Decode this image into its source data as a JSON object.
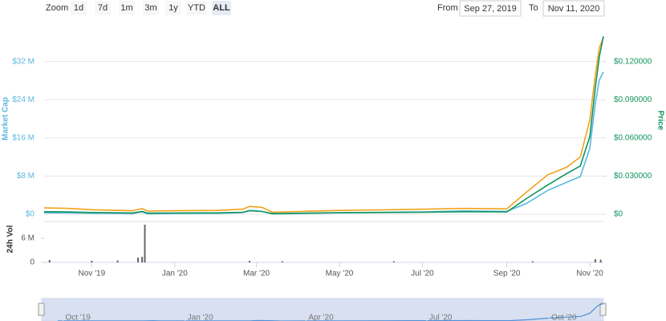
{
  "controls": {
    "zoom_label": "Zoom",
    "zoom_buttons": [
      "1d",
      "7d",
      "1m",
      "3m",
      "1y",
      "YTD",
      "ALL"
    ],
    "selected_button": "ALL",
    "from_label": "From",
    "from": "Sep 27, 2019",
    "to_label": "To",
    "to": "Nov 11, 2020"
  },
  "chart_data": [
    {
      "type": "line",
      "ylabel": "Market Cap",
      "y2label": "Price",
      "grid": true,
      "x": [
        "2019-09-27",
        "2019-10-15",
        "2019-11-01",
        "2019-11-15",
        "2019-12-01",
        "2019-12-08",
        "2019-12-12",
        "2020-01-01",
        "2020-02-01",
        "2020-02-20",
        "2020-02-25",
        "2020-03-05",
        "2020-03-13",
        "2020-04-01",
        "2020-05-01",
        "2020-06-01",
        "2020-07-01",
        "2020-08-01",
        "2020-09-01",
        "2020-09-15",
        "2020-10-01",
        "2020-10-15",
        "2020-10-25",
        "2020-11-01",
        "2020-11-05",
        "2020-11-08",
        "2020-11-11"
      ],
      "xlim": [
        "2019-09-27",
        "2020-11-11"
      ],
      "xticks": [
        {
          "value": "2019-11-01",
          "label": "Nov '19"
        },
        {
          "value": "2020-01-01",
          "label": "Jan '20"
        },
        {
          "value": "2020-03-01",
          "label": "Mar '20"
        },
        {
          "value": "2020-05-01",
          "label": "May '20"
        },
        {
          "value": "2020-07-01",
          "label": "Jul '20"
        },
        {
          "value": "2020-09-01",
          "label": "Sep '20"
        },
        {
          "value": "2020-11-01",
          "label": "Nov '20"
        }
      ],
      "ylim": [
        0,
        39000000
      ],
      "yticks": [
        {
          "value": 0,
          "label": "$0"
        },
        {
          "value": 8000000,
          "label": "$8 M"
        },
        {
          "value": 16000000,
          "label": "$16 M"
        },
        {
          "value": 24000000,
          "label": "$24 M"
        },
        {
          "value": 32000000,
          "label": "$32 M"
        }
      ],
      "y2lim": [
        0,
        0.1465
      ],
      "y2ticks": [
        {
          "value": 0,
          "label": "$0"
        },
        {
          "value": 0.03,
          "label": "$0.030000"
        },
        {
          "value": 0.06,
          "label": "$0.060000"
        },
        {
          "value": 0.09,
          "label": "$0.090000"
        },
        {
          "value": 0.12,
          "label": "$0.120000"
        }
      ],
      "series": [
        {
          "color": "#f0a31a",
          "axis": "y2",
          "values": [
            0.005,
            0.0046,
            0.0036,
            0.0032,
            0.0028,
            0.0045,
            0.0025,
            0.0028,
            0.003,
            0.004,
            0.0062,
            0.0055,
            0.0015,
            0.0022,
            0.003,
            0.0035,
            0.004,
            0.0046,
            0.0042,
            0.017,
            0.031,
            0.037,
            0.045,
            0.074,
            0.109,
            0.131,
            0.139
          ]
        },
        {
          "color": "#5bb8e0",
          "values": [
            300000,
            280000,
            220000,
            200000,
            150000,
            500000,
            100000,
            180000,
            200000,
            350000,
            800000,
            600000,
            50000,
            150000,
            300000,
            400000,
            500000,
            700000,
            600000,
            2200000,
            5000000,
            6700000,
            7900000,
            13800000,
            23100000,
            28100000,
            29800000
          ]
        },
        {
          "color": "#10945e",
          "axis": "y2",
          "values": [
            0.002,
            0.0018,
            0.0014,
            0.0012,
            0.001,
            0.0022,
            0.0009,
            0.001,
            0.0011,
            0.0016,
            0.0028,
            0.0022,
            0.0005,
            0.0008,
            0.0012,
            0.0014,
            0.0016,
            0.002,
            0.0018,
            0.012,
            0.023,
            0.032,
            0.038,
            0.061,
            0.099,
            0.124,
            0.14
          ]
        }
      ]
    },
    {
      "type": "bar",
      "ylabel": "24h Vol",
      "color": "#666666",
      "x": [
        "2019-10-01",
        "2019-11-01",
        "2019-11-20",
        "2019-12-05",
        "2019-12-08",
        "2019-12-10",
        "2020-02-25",
        "2020-03-20",
        "2020-06-10",
        "2020-09-20",
        "2020-11-05",
        "2020-11-09"
      ],
      "values": [
        600000,
        400000,
        500000,
        1200000,
        1400000,
        9400000,
        400000,
        300000,
        300000,
        300000,
        800000,
        700000
      ],
      "ylim": [
        0,
        10200000
      ],
      "yticks": [
        0,
        {
          "value": 6000000,
          "label": "6 M"
        }
      ]
    },
    {
      "type": "navigator",
      "xlim": [
        "2019-09-15",
        "2020-11-11"
      ],
      "xticks": [
        {
          "value": "2019-10-01",
          "label": "Oct '19"
        },
        {
          "value": "2020-01-01",
          "label": "Jan '20"
        },
        {
          "value": "2020-04-01",
          "label": "Apr '20"
        },
        {
          "value": "2020-07-01",
          "label": "Jul '20"
        },
        {
          "value": "2020-10-01",
          "label": "Oct '20"
        }
      ]
    }
  ]
}
